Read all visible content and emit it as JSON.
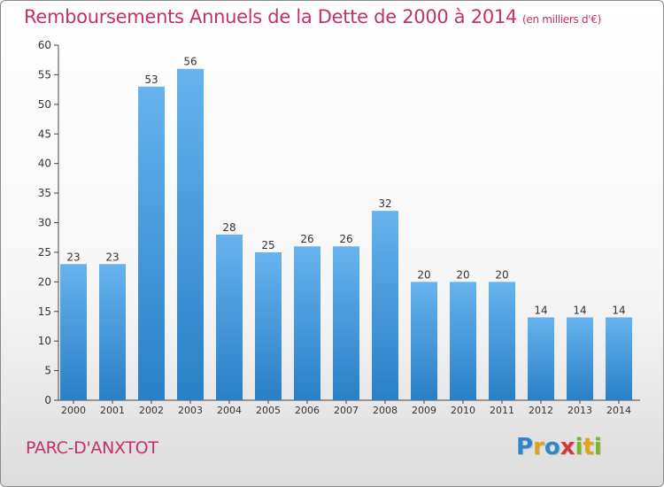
{
  "title": "Remboursements Annuels de la Dette de 2000 à 2014",
  "subtitle": "(en milliers d'€)",
  "location": "PARC-D'ANXTOT",
  "logo": {
    "letters": [
      "P",
      "r",
      "o",
      "x",
      "i",
      "t",
      "i"
    ],
    "colors": [
      "#2f86c8",
      "#e3a21a",
      "#2f86c8",
      "#d23a3a",
      "#7bb52a",
      "#e3a21a",
      "#7bb52a"
    ]
  },
  "chart_data": {
    "type": "bar",
    "categories": [
      "2000",
      "2001",
      "2002",
      "2003",
      "2004",
      "2005",
      "2006",
      "2007",
      "2008",
      "2009",
      "2010",
      "2011",
      "2012",
      "2013",
      "2014"
    ],
    "values": [
      23,
      23,
      53,
      56,
      28,
      25,
      26,
      26,
      32,
      20,
      20,
      20,
      14,
      14,
      14
    ],
    "ylim": [
      0,
      60
    ],
    "yticks": [
      0,
      5,
      10,
      15,
      20,
      25,
      30,
      35,
      40,
      45,
      50,
      55,
      60
    ],
    "grid": false,
    "bar_color": "#3a93dc"
  }
}
